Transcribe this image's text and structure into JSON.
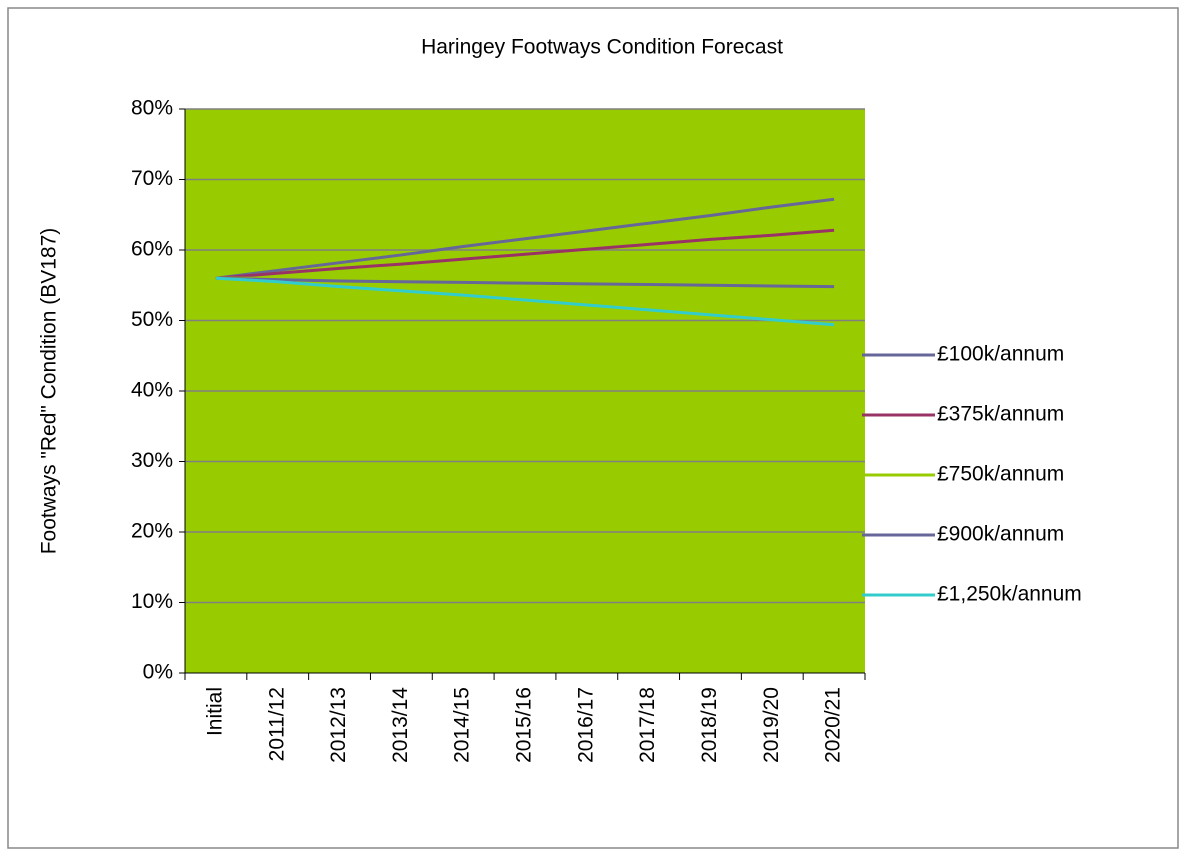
{
  "chart_data": {
    "type": "line",
    "title": "Haringey  Footways Condition Forecast",
    "y_label": "Footways \"Red\" Condition (BV187)",
    "categories": [
      "Initial",
      "2011/12",
      "2012/13",
      "2013/14",
      "2014/15",
      "2015/16",
      "2016/17",
      "2017/18",
      "2018/19",
      "2019/20",
      "2020/21"
    ],
    "series": [
      {
        "name": "£100k/annum",
        "color": "#666699",
        "values": [
          56,
          57.1,
          58.2,
          59.3,
          60.5,
          61.6,
          62.7,
          63.8,
          64.9,
          66.1,
          67.2
        ]
      },
      {
        "name": "£375k/annum",
        "color": "#993366",
        "values": [
          56,
          56.7,
          57.4,
          58.0,
          58.7,
          59.4,
          60.1,
          60.8,
          61.5,
          62.1,
          62.8
        ]
      },
      {
        "name": "£750k/annum",
        "color": "#99cc00",
        "values": [
          56,
          56,
          56,
          56,
          56,
          56,
          56,
          56,
          56,
          56,
          56
        ]
      },
      {
        "name": "£900k/annum",
        "color": "#666699",
        "values": [
          56,
          55.8,
          55.6,
          55.5,
          55.4,
          55.3,
          55.2,
          55.1,
          55.0,
          54.9,
          54.8
        ]
      },
      {
        "name": "£1,250k/annum",
        "color": "#33cccc",
        "values": [
          56,
          55.5,
          54.8,
          54.2,
          53.6,
          52.9,
          52.2,
          51.5,
          50.8,
          50.1,
          49.4
        ]
      }
    ],
    "ylim": [
      0,
      80
    ],
    "yticks": [
      {
        "value": 0,
        "label": "0%"
      },
      {
        "value": 10,
        "label": "10%"
      },
      {
        "value": 20,
        "label": "20%"
      },
      {
        "value": 30,
        "label": "30%"
      },
      {
        "value": 40,
        "label": "40%"
      },
      {
        "value": 50,
        "label": "50%"
      },
      {
        "value": 60,
        "label": "60%"
      },
      {
        "value": 70,
        "label": "70%"
      },
      {
        "value": 80,
        "label": "80%"
      }
    ],
    "grid": true,
    "plot_background": "#99cc00",
    "legend": "right"
  }
}
